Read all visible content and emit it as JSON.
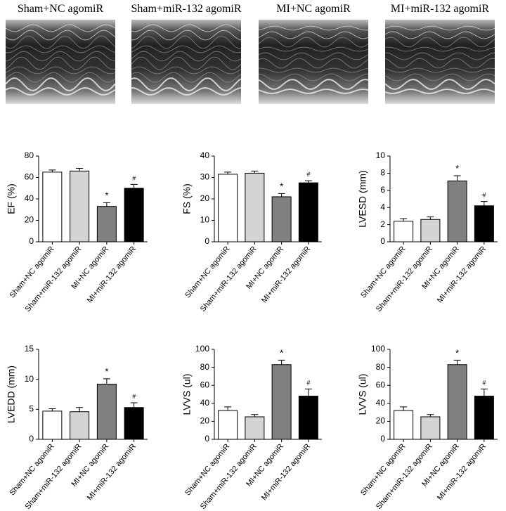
{
  "images": {
    "labels": [
      "Sham+NC agomiR",
      "Sham+miR-132 agomiR",
      "MI+NC agomiR",
      "MI+miR-132 agomiR"
    ]
  },
  "chart_data": [
    {
      "type": "bar",
      "ylabel": "EF (%)",
      "categories": [
        "Sham+NC agomiR",
        "Sham+miR-132 agomiR",
        "MI+NC agomiR",
        "MI+miR-132 agomiR"
      ],
      "values": [
        65,
        66,
        33,
        50
      ],
      "errors": [
        2,
        2.5,
        3.5,
        3.5
      ],
      "value_annotations": [
        null,
        null,
        "*",
        "#"
      ],
      "colors": [
        "#ffffff",
        "#d4d4d4",
        "#808080",
        "#000000"
      ],
      "ylim": [
        0,
        80
      ],
      "yticks": [
        0,
        20,
        40,
        60,
        80
      ]
    },
    {
      "type": "bar",
      "ylabel": "FS (%)",
      "categories": [
        "Sham+NC agomiR",
        "Sham+miR-132 agomiR",
        "MI+NC agomiR",
        "MI+miR-132 agomiR"
      ],
      "values": [
        31.5,
        32,
        21,
        27.5
      ],
      "errors": [
        1,
        1,
        1.5,
        1
      ],
      "value_annotations": [
        null,
        null,
        "*",
        "#"
      ],
      "colors": [
        "#ffffff",
        "#d4d4d4",
        "#808080",
        "#000000"
      ],
      "ylim": [
        0,
        40
      ],
      "yticks": [
        0,
        10,
        20,
        30,
        40
      ]
    },
    {
      "type": "bar",
      "ylabel": "LVESD (mm)",
      "categories": [
        "Sham+NC agomiR",
        "Sham+miR-132 agomiR",
        "MI+NC agomiR",
        "MI+miR-132 agomiR"
      ],
      "values": [
        2.4,
        2.6,
        7.1,
        4.2
      ],
      "errors": [
        0.3,
        0.3,
        0.6,
        0.5
      ],
      "value_annotations": [
        null,
        null,
        "*",
        "#"
      ],
      "colors": [
        "#ffffff",
        "#d4d4d4",
        "#808080",
        "#000000"
      ],
      "ylim": [
        0,
        10
      ],
      "yticks": [
        0,
        2,
        4,
        6,
        8,
        10
      ]
    },
    {
      "type": "bar",
      "ylabel": "LVEDD (mm)",
      "categories": [
        "Sham+NC agomiR",
        "Sham+miR-132 agomiR",
        "MI+NC agomiR",
        "MI+miR-132 agomiR"
      ],
      "values": [
        4.7,
        4.6,
        9.2,
        5.3
      ],
      "errors": [
        0.4,
        0.7,
        0.9,
        0.8
      ],
      "value_annotations": [
        null,
        null,
        "*",
        "#"
      ],
      "colors": [
        "#ffffff",
        "#d4d4d4",
        "#808080",
        "#000000"
      ],
      "ylim": [
        0,
        15
      ],
      "yticks": [
        0,
        5,
        10,
        15
      ]
    },
    {
      "type": "bar",
      "ylabel": "LVVS (ul)",
      "categories": [
        "Sham+NC agomiR",
        "Sham+miR-132 agomiR",
        "MI+NC agomiR",
        "MI+miR-132 agomiR"
      ],
      "values": [
        32,
        25,
        83,
        48
      ],
      "errors": [
        4,
        2.5,
        5,
        8
      ],
      "value_annotations": [
        null,
        null,
        "*",
        "#"
      ],
      "colors": [
        "#ffffff",
        "#d4d4d4",
        "#808080",
        "#000000"
      ],
      "ylim": [
        0,
        100
      ],
      "yticks": [
        0,
        20,
        40,
        60,
        80,
        100
      ]
    },
    {
      "type": "bar",
      "ylabel": "LVVS (ul)",
      "categories": [
        "Sham+NC agomiR",
        "Sham+miR-132 agomiR",
        "MI+NC agomiR",
        "MI+miR-132 agomiR"
      ],
      "values": [
        32,
        25,
        83,
        48
      ],
      "errors": [
        4,
        2.5,
        5,
        8
      ],
      "value_annotations": [
        null,
        null,
        "*",
        "#"
      ],
      "colors": [
        "#ffffff",
        "#d4d4d4",
        "#808080",
        "#000000"
      ],
      "ylim": [
        0,
        100
      ],
      "yticks": [
        0,
        20,
        40,
        60,
        80,
        100
      ]
    }
  ]
}
